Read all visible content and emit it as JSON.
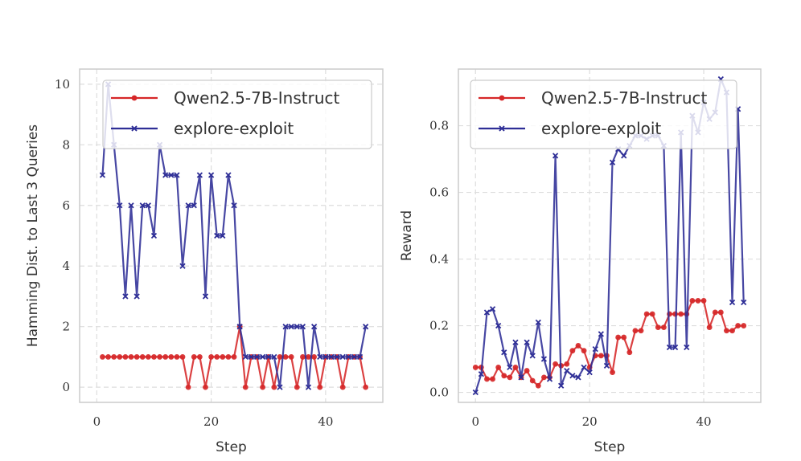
{
  "colors": {
    "qwen": "#d62728",
    "explore": "#2e2e96",
    "grid": "#dddddd",
    "frame": "#cccccc"
  },
  "chart_data": [
    {
      "type": "line",
      "title": "",
      "xlabel": "Step",
      "ylabel": "Hamming Dist. to Last 3 Queries",
      "xlim": [
        -3,
        50
      ],
      "ylim": [
        -0.5,
        10.5
      ],
      "xticks": [
        0,
        20,
        40
      ],
      "yticks": [
        0,
        2,
        4,
        6,
        8,
        10
      ],
      "legend_position": "upper-right",
      "series": [
        {
          "name": "Qwen2.5-7B-Instruct",
          "marker": "circle",
          "x": [
            1,
            2,
            3,
            4,
            5,
            6,
            7,
            8,
            9,
            10,
            11,
            12,
            13,
            14,
            15,
            16,
            17,
            18,
            19,
            20,
            21,
            22,
            23,
            24,
            25,
            26,
            27,
            28,
            29,
            30,
            31,
            32,
            33,
            34,
            35,
            36,
            37,
            38,
            39,
            40,
            41,
            42,
            43,
            44,
            45,
            46,
            47
          ],
          "y": [
            1,
            1,
            1,
            1,
            1,
            1,
            1,
            1,
            1,
            1,
            1,
            1,
            1,
            1,
            1,
            0,
            1,
            1,
            0,
            1,
            1,
            1,
            1,
            1,
            2,
            0,
            1,
            1,
            0,
            1,
            0,
            1,
            1,
            1,
            0,
            1,
            1,
            1,
            0,
            1,
            1,
            1,
            0,
            1,
            1,
            1,
            0
          ]
        },
        {
          "name": "explore-exploit",
          "marker": "x",
          "x": [
            1,
            2,
            3,
            4,
            5,
            6,
            7,
            8,
            9,
            10,
            11,
            12,
            13,
            14,
            15,
            16,
            17,
            18,
            19,
            20,
            21,
            22,
            23,
            24,
            25,
            26,
            27,
            28,
            29,
            30,
            31,
            32,
            33,
            34,
            35,
            36,
            37,
            38,
            39,
            40,
            41,
            42,
            43,
            44,
            45,
            46,
            47
          ],
          "y": [
            7,
            10,
            8,
            6,
            3,
            6,
            3,
            6,
            6,
            5,
            8,
            7,
            7,
            7,
            4,
            6,
            6,
            7,
            3,
            7,
            5,
            5,
            7,
            6,
            2,
            1,
            1,
            1,
            1,
            1,
            1,
            0,
            2,
            2,
            2,
            2,
            0,
            2,
            1,
            1,
            1,
            1,
            1,
            1,
            1,
            1,
            2
          ]
        }
      ]
    },
    {
      "type": "line",
      "title": "",
      "xlabel": "Step",
      "ylabel": "Reward",
      "xlim": [
        -3,
        50
      ],
      "ylim": [
        -0.03,
        0.97
      ],
      "xticks": [
        0,
        20,
        40
      ],
      "yticks": [
        0.0,
        0.2,
        0.4,
        0.6,
        0.8
      ],
      "ytick_labels": [
        "0.0",
        "0.2",
        "0.4",
        "0.6",
        "0.8"
      ],
      "legend_position": "upper-right",
      "series": [
        {
          "name": "Qwen2.5-7B-Instruct",
          "marker": "circle",
          "x": [
            0,
            1,
            2,
            3,
            4,
            5,
            6,
            7,
            8,
            9,
            10,
            11,
            12,
            13,
            14,
            15,
            16,
            17,
            18,
            19,
            20,
            21,
            22,
            23,
            24,
            25,
            26,
            27,
            28,
            29,
            30,
            31,
            32,
            33,
            34,
            35,
            36,
            37,
            38,
            39,
            40,
            41,
            42,
            43,
            44,
            45,
            46,
            47
          ],
          "y": [
            0.075,
            0.075,
            0.04,
            0.04,
            0.075,
            0.05,
            0.045,
            0.075,
            0.045,
            0.065,
            0.035,
            0.02,
            0.045,
            0.045,
            0.085,
            0.08,
            0.085,
            0.125,
            0.14,
            0.125,
            0.075,
            0.11,
            0.11,
            0.11,
            0.06,
            0.165,
            0.165,
            0.12,
            0.185,
            0.185,
            0.235,
            0.235,
            0.195,
            0.195,
            0.235,
            0.235,
            0.235,
            0.235,
            0.275,
            0.275,
            0.275,
            0.195,
            0.24,
            0.24,
            0.185,
            0.185,
            0.2,
            0.2
          ]
        },
        {
          "name": "explore-exploit",
          "marker": "x",
          "x": [
            0,
            1,
            2,
            3,
            4,
            5,
            6,
            7,
            8,
            9,
            10,
            11,
            12,
            13,
            14,
            15,
            16,
            17,
            18,
            19,
            20,
            21,
            22,
            23,
            24,
            25,
            26,
            27,
            28,
            29,
            30,
            31,
            32,
            33,
            34,
            35,
            36,
            37,
            38,
            39,
            40,
            41,
            42,
            43,
            44,
            45,
            46,
            47
          ],
          "y": [
            0.0,
            0.055,
            0.24,
            0.25,
            0.2,
            0.12,
            0.075,
            0.15,
            0.045,
            0.15,
            0.11,
            0.21,
            0.1,
            0.04,
            0.71,
            0.02,
            0.065,
            0.05,
            0.045,
            0.075,
            0.06,
            0.13,
            0.175,
            0.08,
            0.69,
            0.73,
            0.71,
            0.74,
            0.77,
            0.77,
            0.76,
            0.77,
            0.77,
            0.74,
            0.135,
            0.135,
            0.78,
            0.135,
            0.83,
            0.78,
            0.87,
            0.82,
            0.84,
            0.94,
            0.9,
            0.27,
            0.85,
            0.27
          ]
        }
      ]
    }
  ]
}
